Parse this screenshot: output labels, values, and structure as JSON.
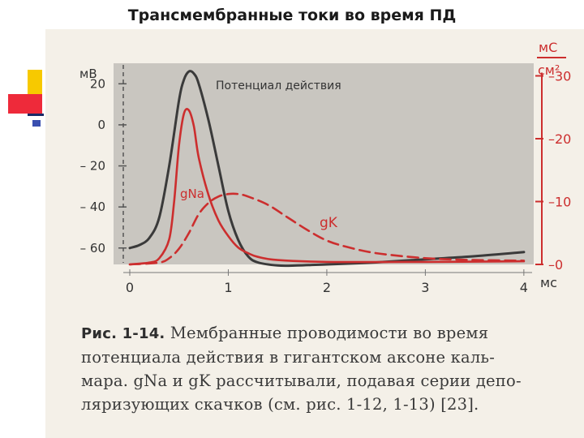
{
  "slide": {
    "title": "Трансмембранные токи во время ПД"
  },
  "chart_data": {
    "type": "line",
    "title": "",
    "curve_label": "Потенциал действия",
    "xlabel": "мс",
    "ylabel_left": "мВ",
    "ylabel_right": [
      "мС",
      "см²"
    ],
    "xlim": [
      0,
      4.1
    ],
    "ylim_left": [
      -68,
      30
    ],
    "ylim_right": [
      0,
      32
    ],
    "x_ticks": [
      "0",
      "1",
      "2",
      "3",
      "4"
    ],
    "y_ticks_left": [
      "20",
      "0",
      "– 20",
      "– 40",
      "– 60"
    ],
    "y_ticks_right": [
      "30",
      "20",
      "10",
      "0"
    ],
    "series": [
      {
        "name": "",
        "axis": "left",
        "style": "solid",
        "color": "#3a3a3a",
        "x": [
          0,
          0.1,
          0.2,
          0.3,
          0.4,
          0.5,
          0.55,
          0.6,
          0.65,
          0.7,
          0.8,
          0.9,
          1.0,
          1.1,
          1.2,
          1.3,
          1.5,
          1.7,
          2.0,
          2.5,
          3.0,
          3.5,
          4.0
        ],
        "y": [
          -60,
          -58.5,
          -55,
          -45,
          -20,
          12,
          22,
          26,
          25,
          20,
          2,
          -20,
          -42,
          -56,
          -64,
          -67,
          -68.5,
          -68.5,
          -68,
          -67,
          -65.5,
          -64,
          -62
        ]
      },
      {
        "name": "gNa",
        "axis": "right",
        "style": "solid",
        "color": "#cc2e2e",
        "x": [
          0,
          0.2,
          0.3,
          0.4,
          0.45,
          0.5,
          0.55,
          0.6,
          0.65,
          0.7,
          0.8,
          0.9,
          1.0,
          1.1,
          1.2,
          1.3,
          1.5,
          2.0,
          3.0,
          4.0
        ],
        "y": [
          0,
          0.3,
          1,
          4,
          10,
          19,
          24,
          24.5,
          22,
          17,
          11,
          7,
          4.5,
          2.7,
          1.8,
          1.2,
          0.7,
          0.4,
          0.4,
          0.5
        ]
      },
      {
        "name": "gK",
        "axis": "right",
        "style": "dashed",
        "color": "#cc2e2e",
        "x": [
          0,
          0.3,
          0.4,
          0.5,
          0.6,
          0.7,
          0.8,
          0.9,
          1.0,
          1.1,
          1.2,
          1.4,
          1.6,
          1.8,
          2.0,
          2.2,
          2.5,
          3.0,
          3.5,
          4.0
        ],
        "y": [
          0,
          0.3,
          1,
          2.5,
          5,
          8,
          9.8,
          10.8,
          11.2,
          11.2,
          10.8,
          9.5,
          7.5,
          5.5,
          3.8,
          2.8,
          1.8,
          1.0,
          0.7,
          0.6
        ]
      }
    ]
  },
  "caption": {
    "lead": "Рис. 1-14.",
    "lines": [
      "Мембранные проводимости во время",
      "потенциала действия в гигантском аксоне каль-",
      "мара. gNa и gK рассчитывали, подавая серии депо-",
      "ляризующих скачков (см. рис. 1-12, 1-13) [23]."
    ]
  }
}
